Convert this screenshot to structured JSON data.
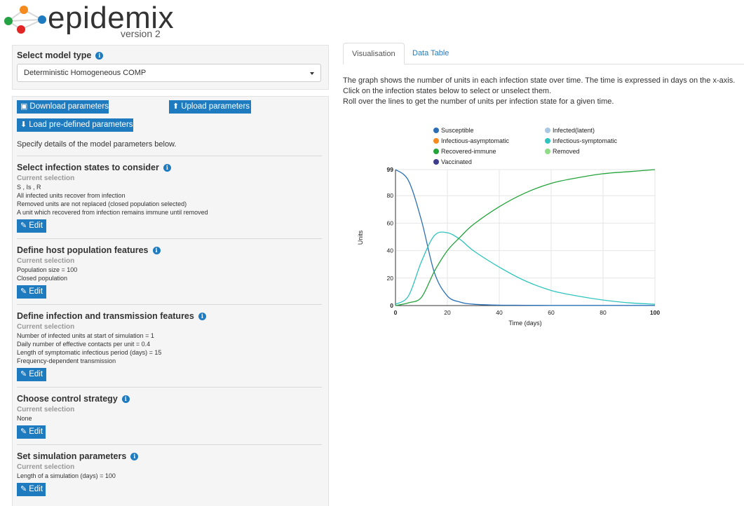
{
  "app": {
    "name": "epidemix",
    "version": "version 2"
  },
  "model_type": {
    "label": "Select model type",
    "selected": "Deterministic Homogeneous COMP"
  },
  "params": {
    "download_label": "Download parameters",
    "upload_label": "Upload parameters",
    "load_label": "Load pre-defined parameters",
    "intro": "Specify details of the model parameters below."
  },
  "sections": [
    {
      "title": "Select infection states to consider",
      "sub": "Current selection",
      "lines": [
        "S , Is , R",
        "All infected units recover from infection",
        "Removed units are not replaced (closed population selected)",
        "A unit which recovered from infection remains immune until removed"
      ],
      "edit": "Edit"
    },
    {
      "title": "Define host population features",
      "sub": "Current selection",
      "lines": [
        "Population size = 100",
        "Closed population"
      ],
      "edit": "Edit"
    },
    {
      "title": "Define infection and transmission features",
      "sub": "Current selection",
      "lines": [
        "Number of infected units at start of simulation = 1",
        "Daily number of effective contacts per unit = 0.4",
        "Length of symptomatic infectious period (days) = 15",
        "Frequency-dependent transmission"
      ],
      "edit": "Edit"
    },
    {
      "title": "Choose control strategy",
      "sub": "Current selection",
      "lines": [
        "None"
      ],
      "edit": "Edit"
    },
    {
      "title": "Set simulation parameters",
      "sub": "Current selection",
      "lines": [
        "Length of a simulation (days) = 100"
      ],
      "edit": "Edit"
    }
  ],
  "tabs": {
    "visualisation": "Visualisation",
    "data_table": "Data Table"
  },
  "description": [
    "The graph shows the number of units in each infection state over time. The time is expressed in days on the x-axis.",
    "Click on the infection states below to select or unselect them.",
    "Roll over the lines to get the number of units per infection state for a given time."
  ],
  "chart_data": {
    "type": "line",
    "xlabel": "Time (days)",
    "ylabel": "Units",
    "xlim": [
      0,
      100
    ],
    "ylim": [
      0,
      99
    ],
    "x_ticks": [
      0,
      20,
      40,
      60,
      80,
      100
    ],
    "y_ticks": [
      0,
      20,
      40,
      60,
      80,
      99
    ],
    "grid": true,
    "legend": [
      {
        "name": "Susceptible",
        "color": "#2a6fb5"
      },
      {
        "name": "Infected(latent)",
        "color": "#a8c8e4"
      },
      {
        "name": "Infectious-asymptomatic",
        "color": "#f58a1f"
      },
      {
        "name": "Infectious-symptomatic",
        "color": "#2ec4be"
      },
      {
        "name": "Recovered-immune",
        "color": "#23a33a"
      },
      {
        "name": "Removed",
        "color": "#8fdc86"
      },
      {
        "name": "Vaccinated",
        "color": "#3d3d8c"
      }
    ],
    "x": [
      0,
      5,
      10,
      15,
      20,
      25,
      30,
      40,
      50,
      60,
      70,
      80,
      90,
      100
    ],
    "series": [
      {
        "name": "Susceptible",
        "color": "#2a6fb5",
        "values": [
          99,
          91,
          62,
          24,
          7,
          2.5,
          1,
          0.3,
          0.2,
          0.1,
          0.1,
          0.1,
          0.1,
          0.1
        ]
      },
      {
        "name": "Infectious-symptomatic",
        "color": "#2ec4be",
        "values": [
          1,
          7,
          32,
          51,
          53,
          48,
          40,
          28,
          18,
          11,
          7,
          4,
          2,
          1
        ]
      },
      {
        "name": "Recovered-immune",
        "color": "#23a33a",
        "values": [
          0,
          2,
          6,
          25,
          40,
          50,
          59,
          72,
          82,
          89,
          93,
          96,
          97.5,
          99
        ]
      }
    ]
  }
}
